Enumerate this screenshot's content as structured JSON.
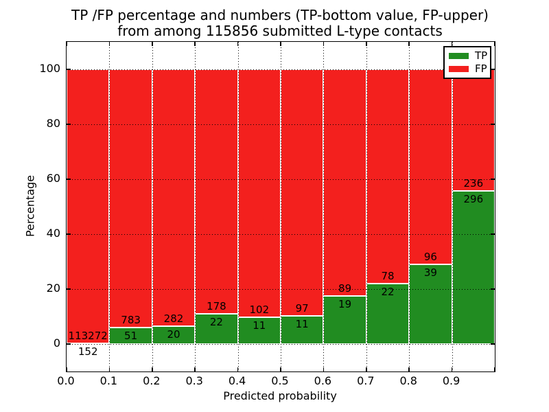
{
  "chart_data": {
    "type": "bar",
    "stacked": true,
    "title_line1": "TP /FP percentage and numbers (TP-bottom value, FP-upper)",
    "title_line2": "from among 115856 submitted L-type contacts",
    "xlabel": "Predicted probability",
    "ylabel": "Percentage",
    "xlim": [
      0.0,
      1.0
    ],
    "ylim": [
      -10,
      110
    ],
    "bin_width": 0.1,
    "bin_starts": [
      0.0,
      0.1,
      0.2,
      0.3,
      0.4,
      0.5,
      0.6,
      0.7,
      0.8,
      0.9
    ],
    "x_tick_labels": [
      "0.0",
      "0.1",
      "0.2",
      "0.3",
      "0.4",
      "0.5",
      "0.6",
      "0.7",
      "0.8",
      "0.9"
    ],
    "y_tick_values": [
      0,
      20,
      40,
      60,
      80,
      100
    ],
    "y_tick_labels": [
      "0",
      "20",
      "40",
      "60",
      "80",
      "100"
    ],
    "grid_style": "dotted",
    "total_submitted": 115856,
    "series": [
      {
        "name": "TP",
        "position": "bottom",
        "color": "#218c21",
        "values": [
          152,
          51,
          20,
          22,
          11,
          11,
          19,
          22,
          39,
          296
        ]
      },
      {
        "name": "FP",
        "position": "top",
        "color": "#f3201e",
        "values": [
          113272,
          783,
          282,
          178,
          102,
          97,
          89,
          78,
          96,
          236
        ]
      }
    ],
    "tp_percent": [
      0.13,
      6.12,
      6.62,
      11.0,
      9.73,
      10.19,
      17.59,
      22.0,
      28.89,
      55.64
    ],
    "legend": {
      "position": "upper right",
      "entries": [
        {
          "label": "TP",
          "color": "#218c21"
        },
        {
          "label": "FP",
          "color": "#f3201e"
        }
      ]
    },
    "colors": {
      "tp_green": "#218c21",
      "fp_red": "#f3201e",
      "grid": "#000000",
      "bar_edge": "#ffffff",
      "background": "#ffffff"
    }
  }
}
